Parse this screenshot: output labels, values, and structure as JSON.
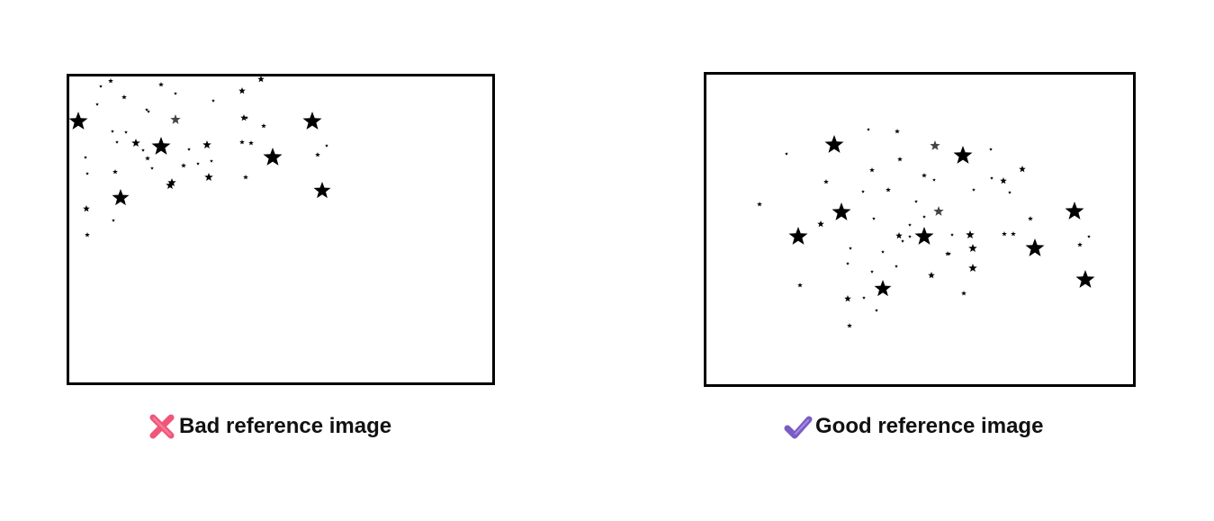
{
  "panels": [
    {
      "id": "bad",
      "caption": "Bad reference image",
      "marker_icon": "cross-mark-icon",
      "marker_color": "#F0557A",
      "star_color": "#000000",
      "faded_star_color": "#444444"
    },
    {
      "id": "good",
      "caption": "Good reference image",
      "marker_icon": "check-mark-icon",
      "marker_color": "#7B5CC4",
      "star_color": "#000000",
      "faded_star_color": "#444444"
    }
  ]
}
